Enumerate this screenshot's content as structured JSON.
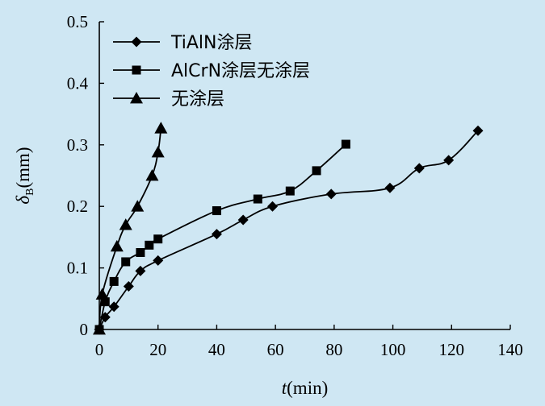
{
  "chart_data": {
    "type": "line",
    "xlabel": {
      "italic": "t",
      "rest": "(min)"
    },
    "ylabel": {
      "italic": "δ",
      "sub": "B",
      "rest": "(mm)"
    },
    "xlim": [
      0,
      140
    ],
    "ylim": [
      0,
      0.5
    ],
    "x_ticks": [
      0,
      20,
      40,
      60,
      80,
      100,
      120,
      140
    ],
    "y_ticks": [
      0,
      0.1,
      0.2,
      0.3,
      0.4,
      0.5
    ],
    "x_tick_labels": [
      "0",
      "20",
      "40",
      "60",
      "80",
      "100",
      "120",
      "140"
    ],
    "y_tick_labels": [
      "0",
      "0.1",
      "0.2",
      "0.3",
      "0.4",
      "0.5"
    ],
    "grid": false,
    "legend_position": "top-left",
    "series": [
      {
        "name": "TiAlN涂层",
        "marker": "diamond",
        "points": [
          [
            0,
            0
          ],
          [
            2,
            0.02
          ],
          [
            5,
            0.037
          ],
          [
            10,
            0.07
          ],
          [
            14,
            0.095
          ],
          [
            20,
            0.112
          ],
          [
            40,
            0.155
          ],
          [
            49,
            0.178
          ],
          [
            59,
            0.2
          ],
          [
            79,
            0.22
          ],
          [
            99,
            0.23
          ],
          [
            109,
            0.262
          ],
          [
            119,
            0.275
          ],
          [
            129,
            0.323
          ]
        ]
      },
      {
        "name": "AlCrN涂层无涂层",
        "marker": "square",
        "points": [
          [
            0,
            0
          ],
          [
            2,
            0.045
          ],
          [
            5,
            0.078
          ],
          [
            9,
            0.11
          ],
          [
            14,
            0.125
          ],
          [
            17,
            0.137
          ],
          [
            20,
            0.147
          ],
          [
            40,
            0.193
          ],
          [
            54,
            0.212
          ],
          [
            65,
            0.225
          ],
          [
            74,
            0.258
          ],
          [
            84,
            0.301
          ]
        ]
      },
      {
        "name": "无涂层",
        "marker": "triangle",
        "points": [
          [
            0,
            0
          ],
          [
            1,
            0.057
          ],
          [
            6,
            0.135
          ],
          [
            9,
            0.17
          ],
          [
            13,
            0.2
          ],
          [
            18,
            0.25
          ],
          [
            20,
            0.288
          ],
          [
            21,
            0.327
          ]
        ]
      }
    ]
  }
}
